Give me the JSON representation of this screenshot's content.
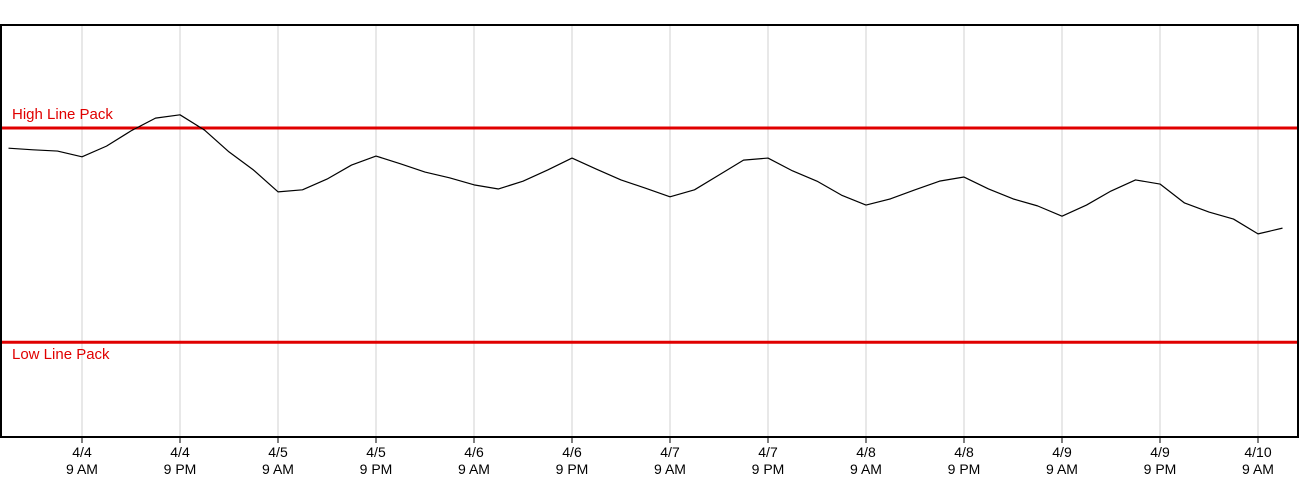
{
  "chart_data": {
    "type": "line",
    "categories": [
      null,
      null,
      null,
      "4/4\n9 AM",
      null,
      null,
      null,
      "4/4\n9 PM",
      null,
      null,
      null,
      "4/5\n9 AM",
      null,
      null,
      null,
      "4/5\n9 PM",
      null,
      null,
      null,
      "4/6\n9 AM",
      null,
      null,
      null,
      "4/6\n9 PM",
      null,
      null,
      null,
      "4/7\n9 AM",
      null,
      null,
      null,
      "4/7\n9 PM",
      null,
      null,
      null,
      "4/8\n9 AM",
      null,
      null,
      null,
      "4/8\n9 PM",
      null,
      null,
      null,
      "4/9\n9 AM",
      null,
      null,
      null,
      "4/9\n9 PM",
      null,
      null,
      null,
      "4/10\n9 AM",
      null
    ],
    "values": [
      70.1,
      69.7,
      69.4,
      68.0,
      70.6,
      74.3,
      77.4,
      78.2,
      74.5,
      69.2,
      64.8,
      59.5,
      60.0,
      62.6,
      66.0,
      68.2,
      66.3,
      64.3,
      62.9,
      61.2,
      60.2,
      62.1,
      64.8,
      67.7,
      65.0,
      62.4,
      60.4,
      58.3,
      60.0,
      63.6,
      67.2,
      67.7,
      64.6,
      62.1,
      58.7,
      56.3,
      57.8,
      60.0,
      62.1,
      63.1,
      60.2,
      57.8,
      56.1,
      53.6,
      56.3,
      59.7,
      62.4,
      61.4,
      56.8,
      54.6,
      52.9,
      49.3,
      50.7
    ],
    "color": "#000000",
    "ylim": [
      0,
      100
    ],
    "grid": true,
    "reference_lines": [
      {
        "label": "High Line Pack",
        "value": 75,
        "color": "#e00000"
      },
      {
        "label": "Low Line Pack",
        "value": 23,
        "color": "#e00000"
      }
    ]
  }
}
